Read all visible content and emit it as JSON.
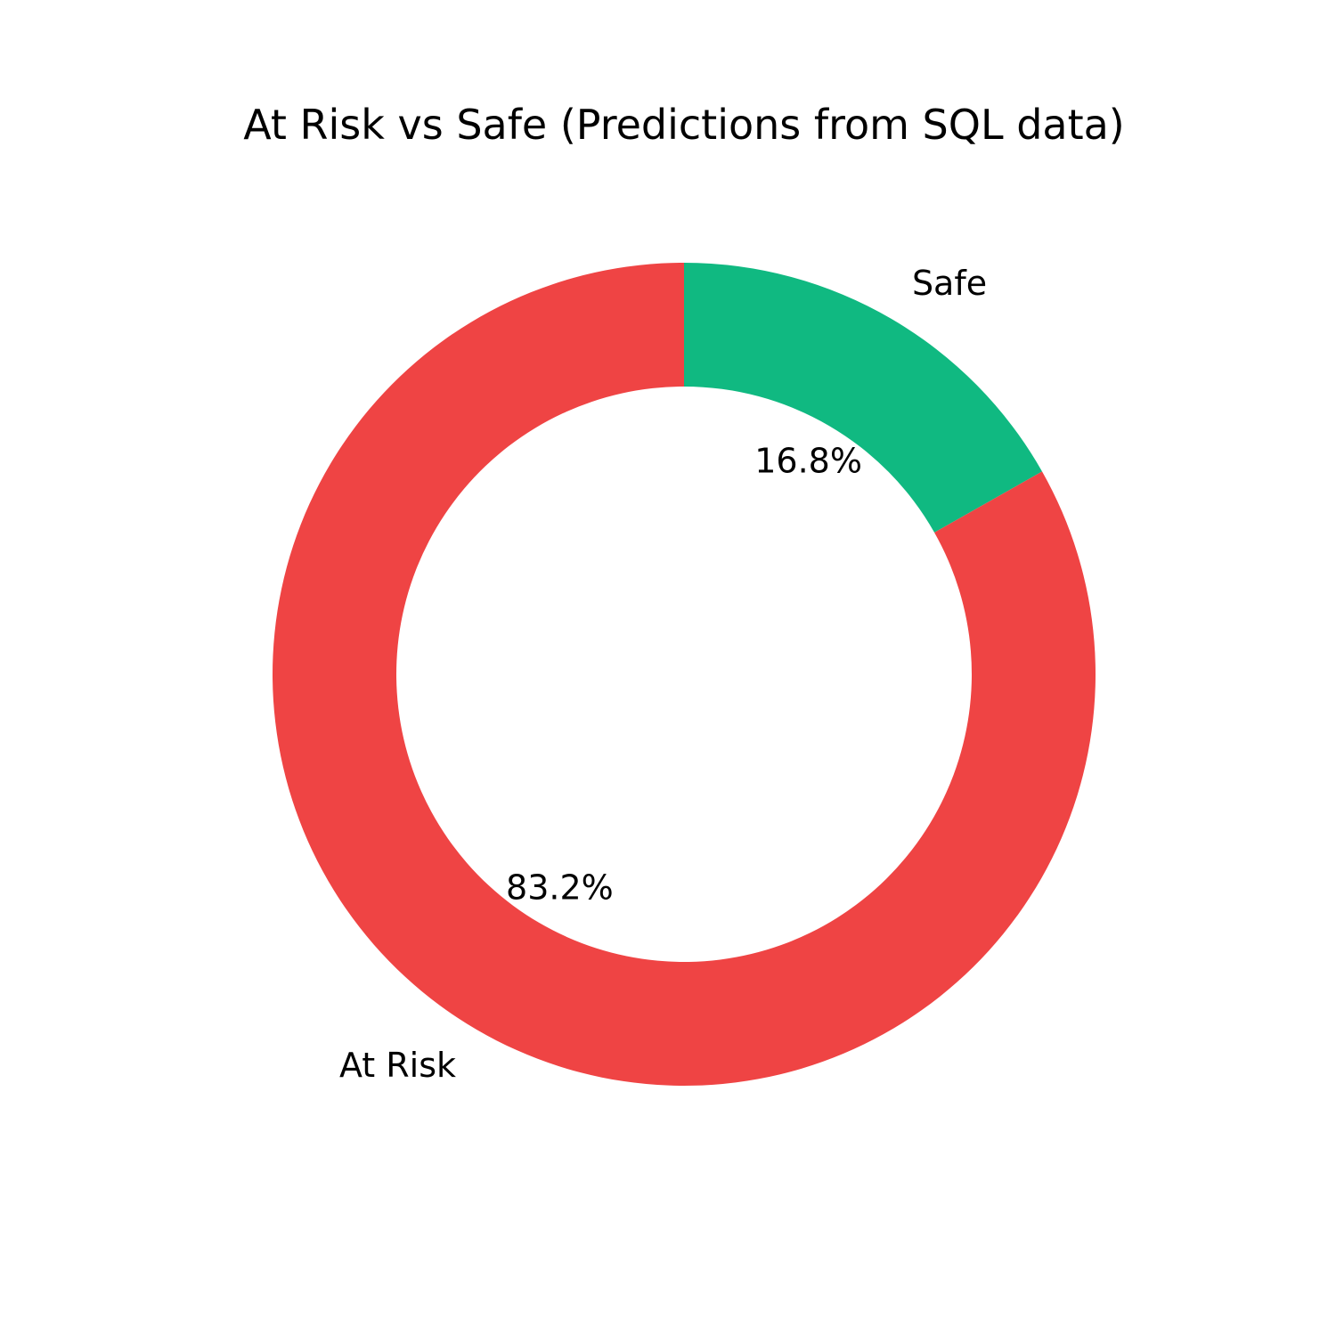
{
  "chart_data": {
    "type": "pie",
    "variant": "donut",
    "title": "At Risk vs Safe (Predictions from SQL data)",
    "slices": [
      {
        "label": "Safe",
        "value": 16.8,
        "value_label": "16.8%",
        "color": "#10b981"
      },
      {
        "label": "At Risk",
        "value": 83.2,
        "value_label": "83.2%",
        "color": "#ef4444"
      }
    ],
    "start_angle": "top (12 o'clock)",
    "direction": "clockwise"
  }
}
